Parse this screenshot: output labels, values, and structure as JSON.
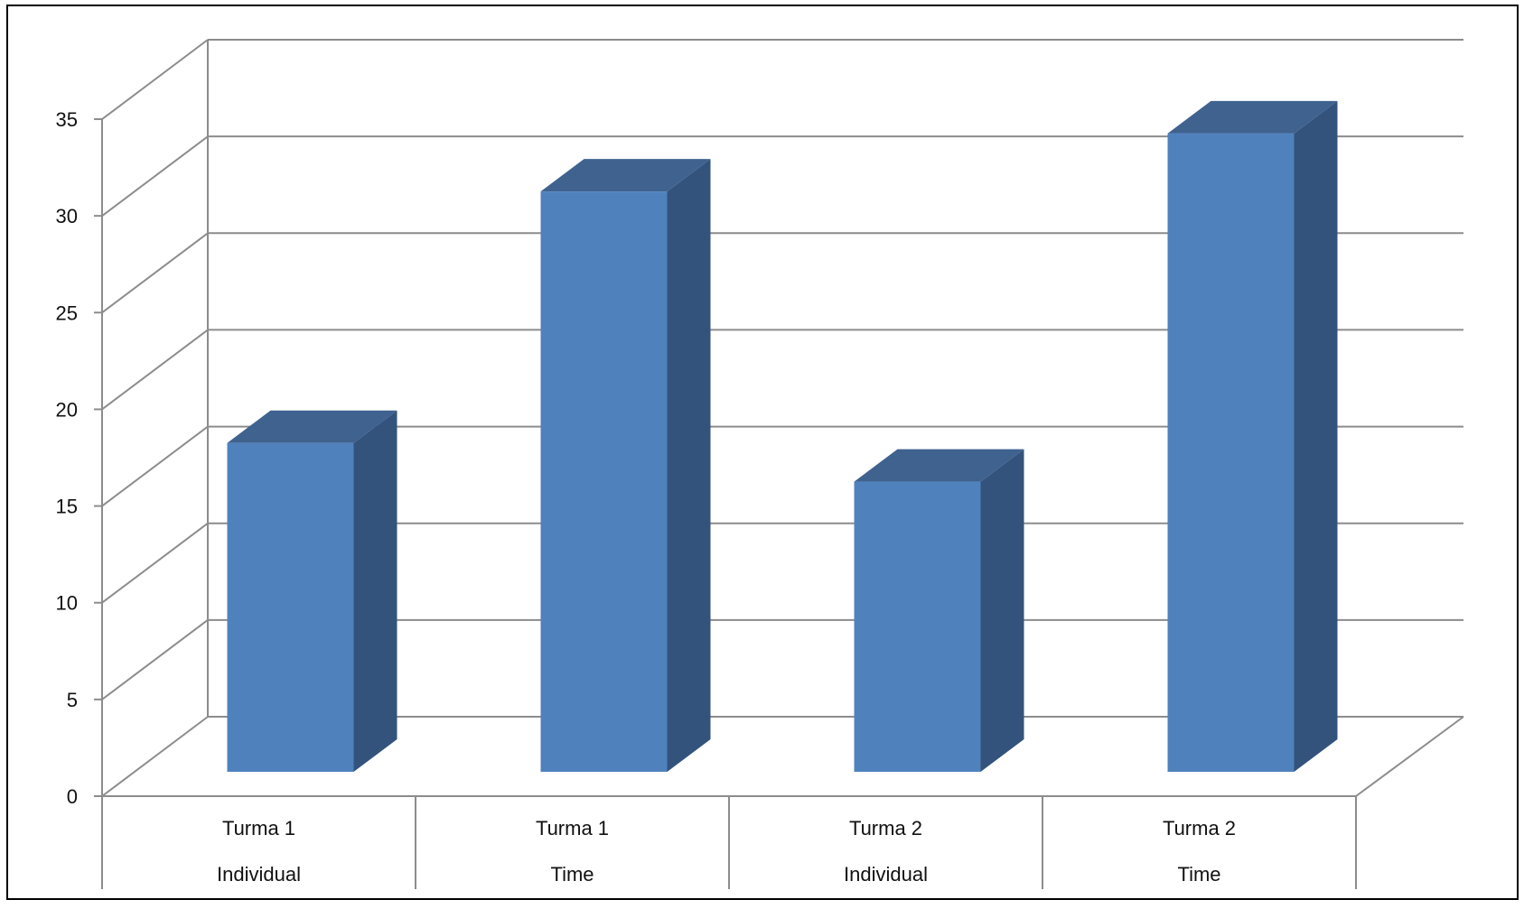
{
  "chart_data": {
    "type": "bar",
    "style": "3d-column",
    "title": "",
    "xlabel": "",
    "ylabel": "",
    "categories": [
      [
        "Turma 1",
        "Individual"
      ],
      [
        "Turma 1",
        "Time"
      ],
      [
        "Turma 2",
        "Individual"
      ],
      [
        "Turma 2",
        "Time"
      ]
    ],
    "series": [
      {
        "values": [
          17,
          30,
          15,
          33
        ]
      }
    ],
    "ylim": [
      0,
      35
    ],
    "yticks": [
      0,
      5,
      10,
      15,
      20,
      25,
      30,
      35
    ],
    "grid": true,
    "legend": "none",
    "colors": {
      "bar_front": "#4f81bd",
      "bar_top": "#3f628f",
      "bar_side": "#33537c",
      "grid": "#8c8c8c",
      "frame": "#000000"
    }
  }
}
